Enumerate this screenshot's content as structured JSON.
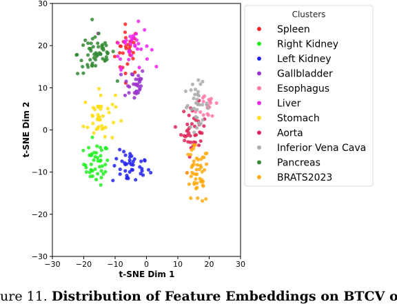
{
  "chart_data": {
    "type": "scatter",
    "title": "",
    "xlabel": "t-SNE Dim 1",
    "ylabel": "t-SNE Dim 2",
    "xlim": [
      -30,
      30
    ],
    "ylim": [
      -30,
      30
    ],
    "xticks": [
      -30,
      -20,
      -10,
      0,
      10,
      20,
      30
    ],
    "yticks": [
      -30,
      -20,
      -10,
      0,
      10,
      20,
      30
    ],
    "grid": false,
    "legend": {
      "title": "Clusters",
      "placement": "right, outside plot"
    },
    "series": [
      {
        "name": "Spleen",
        "color": "#ff2222",
        "center": [
          -6,
          19
        ],
        "spread": [
          2.0,
          3.0
        ],
        "count": 30
      },
      {
        "name": "Right Kidney",
        "color": "#22ee22",
        "center": [
          -16,
          -8
        ],
        "spread": [
          2.0,
          2.5
        ],
        "count": 45
      },
      {
        "name": "Left Kidney",
        "color": "#2222ee",
        "center": [
          -5,
          -9
        ],
        "spread": [
          3.0,
          2.0
        ],
        "count": 40
      },
      {
        "name": "Gallbladder",
        "color": "#9933cc",
        "center": [
          -4,
          11
        ],
        "spread": [
          1.8,
          2.0
        ],
        "count": 30
      },
      {
        "name": "Esophagus",
        "color": "#ff77aa",
        "center": [
          20,
          6
        ],
        "spread": [
          2.0,
          2.0
        ],
        "count": 18
      },
      {
        "name": "Liver",
        "color": "#ee22ee",
        "center": [
          -5,
          20
        ],
        "spread": [
          3.0,
          2.5
        ],
        "count": 35
      },
      {
        "name": "Stomach",
        "color": "#ffdd11",
        "center": [
          -15,
          3
        ],
        "spread": [
          2.5,
          3.0
        ],
        "count": 40
      },
      {
        "name": "Aorta",
        "color": "#dd2255",
        "center": [
          15,
          0
        ],
        "spread": [
          2.0,
          3.0
        ],
        "count": 40
      },
      {
        "name": "Inferior Vena Cava",
        "color": "#aaaaaa",
        "center": [
          16,
          6
        ],
        "spread": [
          2.0,
          2.5
        ],
        "count": 35
      },
      {
        "name": "Pancreas",
        "color": "#338833",
        "center": [
          -16,
          18
        ],
        "spread": [
          3.0,
          2.5
        ],
        "count": 55
      },
      {
        "name": "BRATS2023",
        "color": "#ffaa11",
        "center": [
          16,
          -11
        ],
        "spread": [
          2.0,
          3.5
        ],
        "count": 50
      }
    ]
  },
  "caption": {
    "prefix": "ure 11. ",
    "bold_text": "Distribution of Feature Embeddings on BTCV org"
  }
}
